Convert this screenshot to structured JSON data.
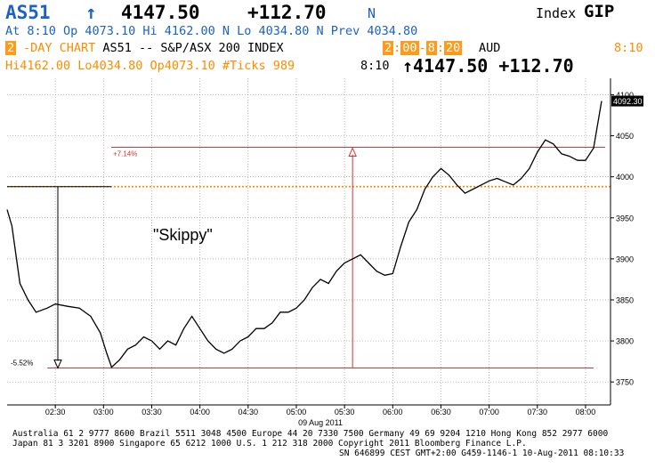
{
  "header": {
    "ticker": "AS51",
    "arrow": "↑",
    "last": "4147.50",
    "change": "+112.70",
    "flag": "N",
    "index_label": "Index",
    "gip": "GIP",
    "at_line": "At  8:10 Op 4073.10   Hi 4162.00 N Lo 4034.80 N Prev 4034.80",
    "day_count": "2",
    "chart_title": "-DAY CHART AS51 -- S&P/ASX 200 INDEX",
    "time_from_h": "2",
    "time_from_m": "00",
    "time_to_h": "8",
    "time_to_m": "20",
    "currency": "AUD",
    "time_right": "8:10",
    "stats_line": "Hi4162.00 Lo4034.80 Op4073.10 #Ticks  989",
    "stats_time": "8:10",
    "stats_last": "↑4147.50 +112.70"
  },
  "annotations": {
    "skippy": "\"Skippy\"",
    "rise_pct": "+7.14%",
    "drop_pct": "-5.52%",
    "last_tag": "4092.30"
  },
  "footer": {
    "line1": "Australia 61 2 9777 8600 Brazil 5511 3048 4500 Europe 44 20 7330 7500 Germany 49 69 9204 1210 Hong Kong 852 2977 6000",
    "line2": "Japan 81 3 3201 8900          Singapore 65 6212 1000        U.S. 1 212 318 2000         Copyright 2011 Bloomberg Finance L.P.",
    "line3": "SN 646899 CEST GMT+2:00 G459-1146-1 10-Aug-2011 08:10:33"
  },
  "chart_data": {
    "type": "line",
    "xlabel": "09 Aug 2011",
    "x_ticks": [
      "02:30",
      "03:00",
      "03:30",
      "04:00",
      "04:30",
      "05:00",
      "05:30",
      "06:00",
      "06:30",
      "07:00",
      "07:30",
      "08:00"
    ],
    "y_ticks": [
      3750,
      3800,
      3850,
      3900,
      3950,
      4000,
      4050,
      4100
    ],
    "ylim": [
      3722,
      4120
    ],
    "grid": true,
    "prev_close": 3988,
    "series": [
      {
        "x": [
          "02:00",
          "02:03",
          "02:08",
          "02:13",
          "02:18",
          "02:25",
          "02:30",
          "02:38",
          "02:45",
          "02:52",
          "02:58",
          "03:02",
          "03:05",
          "03:10",
          "03:15",
          "03:20",
          "03:25",
          "03:30",
          "03:35",
          "03:40",
          "03:45",
          "03:50",
          "03:55",
          "04:00",
          "04:05",
          "04:10",
          "04:15",
          "04:20",
          "04:25",
          "04:30",
          "04:35",
          "04:40",
          "04:45",
          "04:50",
          "04:55",
          "05:00",
          "05:05",
          "05:10",
          "05:15",
          "05:20",
          "05:25",
          "05:30",
          "05:35",
          "05:40",
          "05:45",
          "05:50",
          "05:55",
          "06:00",
          "06:05",
          "06:10",
          "06:15",
          "06:20",
          "06:25",
          "06:30",
          "06:35",
          "06:40",
          "06:45",
          "06:50",
          "06:55",
          "07:00",
          "07:05",
          "07:10",
          "07:15",
          "07:20",
          "07:25",
          "07:30",
          "07:35",
          "07:40",
          "07:45",
          "07:50",
          "07:55",
          "08:00",
          "08:05",
          "08:10"
        ],
        "values": [
          3960,
          3940,
          3870,
          3850,
          3835,
          3840,
          3845,
          3842,
          3840,
          3830,
          3810,
          3785,
          3768,
          3777,
          3790,
          3795,
          3805,
          3800,
          3790,
          3800,
          3795,
          3815,
          3830,
          3815,
          3800,
          3790,
          3785,
          3790,
          3800,
          3805,
          3815,
          3815,
          3822,
          3835,
          3835,
          3840,
          3850,
          3865,
          3875,
          3870,
          3885,
          3895,
          3900,
          3905,
          3895,
          3885,
          3880,
          3882,
          3915,
          3945,
          3960,
          3985,
          4000,
          4010,
          4002,
          3990,
          3980,
          3985,
          3990,
          3995,
          3998,
          3994,
          3990,
          3998,
          4010,
          4030,
          4045,
          4040,
          4028,
          4025,
          4020,
          4020,
          4035,
          4092.3
        ]
      }
    ]
  }
}
